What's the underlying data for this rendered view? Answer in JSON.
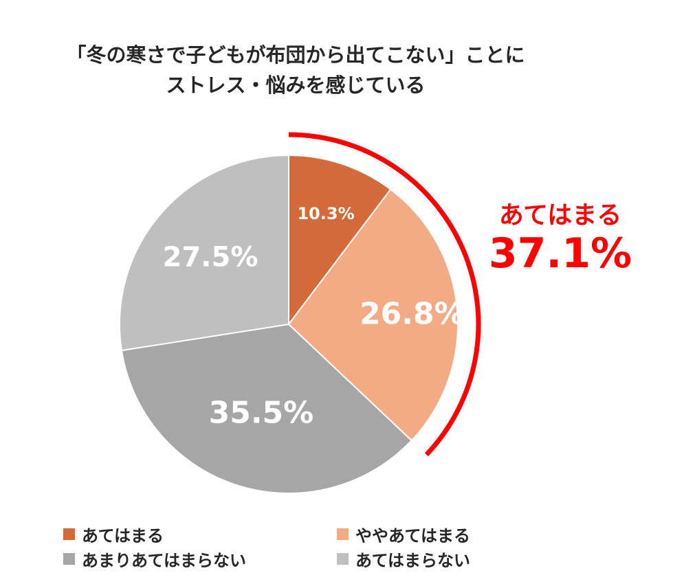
{
  "title": {
    "line1": "「冬の寒さで子どもが布団から出てこない」ことに",
    "line2": "ストレス・悩みを感じている"
  },
  "callout": {
    "label": "あてはまる",
    "value": "37.1%"
  },
  "chart_data": {
    "type": "pie",
    "title": "「冬の寒さで子どもが布団から出てこない」ことにストレス・悩みを感じている",
    "start": "12 o'clock",
    "direction": "clockwise",
    "legend_position": "bottom",
    "slices": [
      {
        "label": "あてはまる",
        "value": 10.3,
        "display": "10.3%",
        "color": "#D4693A"
      },
      {
        "label": "ややあてはまる",
        "value": 26.8,
        "display": "26.8%",
        "color": "#F2AB85"
      },
      {
        "label": "あまりあてはまらない",
        "value": 35.5,
        "display": "35.5%",
        "color": "#A6A6A6"
      },
      {
        "label": "あてはまらない",
        "value": 27.5,
        "display": "27.5%",
        "color": "#BFBFBF"
      }
    ],
    "highlight": {
      "label": "あてはまる",
      "value": 37.1,
      "covers": [
        "あてはまる",
        "ややあてはまる"
      ],
      "color": "#FF0000"
    }
  }
}
